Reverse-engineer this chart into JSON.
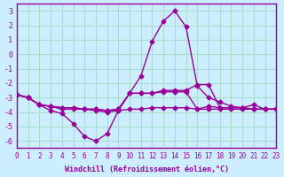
{
  "title": "",
  "xlabel": "Windchill (Refroidissement éolien,°C)",
  "ylabel": "",
  "bg_color": "#cceeff",
  "line_color": "#990099",
  "grid_color": "#aaddcc",
  "xlim": [
    0,
    23
  ],
  "ylim": [
    -6.5,
    3.5
  ],
  "yticks": [
    3,
    2,
    1,
    0,
    -1,
    -2,
    -3,
    -4,
    -5,
    -6
  ],
  "xticks": [
    0,
    1,
    2,
    3,
    4,
    5,
    6,
    7,
    8,
    9,
    10,
    11,
    12,
    13,
    14,
    15,
    16,
    17,
    18,
    19,
    20,
    21,
    22,
    23
  ],
  "lines": [
    {
      "x": [
        0,
        1,
        2,
        3,
        4,
        5,
        6,
        7,
        8,
        9,
        10,
        11,
        12,
        13,
        14,
        15,
        16,
        17,
        18,
        19,
        20,
        21,
        22,
        23
      ],
      "y": [
        -2.8,
        -3.0,
        -3.5,
        -3.9,
        -4.1,
        -4.8,
        -5.7,
        -6.0,
        -5.5,
        -3.9,
        -2.7,
        -1.5,
        0.9,
        2.3,
        3.0,
        1.9,
        -2.2,
        -3.0,
        -3.3,
        -3.6,
        -3.7,
        -3.5,
        -3.8,
        -3.8
      ]
    },
    {
      "x": [
        0,
        1,
        2,
        3,
        4,
        5,
        6,
        7,
        8,
        9,
        10,
        11,
        12,
        13,
        14,
        15,
        16,
        17,
        18,
        19,
        20,
        21,
        22,
        23
      ],
      "y": [
        -2.8,
        -3.0,
        -3.5,
        -3.6,
        -3.7,
        -3.7,
        -3.8,
        -3.8,
        -3.9,
        -3.8,
        -2.7,
        -2.7,
        -2.7,
        -2.6,
        -2.6,
        -2.6,
        -3.8,
        -3.6,
        -3.7,
        -3.7,
        -3.7,
        -3.8,
        -3.8,
        -3.8
      ]
    },
    {
      "x": [
        0,
        1,
        2,
        3,
        4,
        5,
        6,
        7,
        8,
        9,
        10,
        11,
        12,
        13,
        14,
        15,
        16,
        17,
        18,
        19,
        20,
        21,
        22,
        23
      ],
      "y": [
        -2.8,
        -3.0,
        -3.5,
        -3.6,
        -3.7,
        -3.7,
        -3.8,
        -3.8,
        -3.9,
        -3.8,
        -2.7,
        -2.7,
        -2.7,
        -2.5,
        -2.5,
        -2.5,
        -2.1,
        -2.1,
        -3.7,
        -3.7,
        -3.7,
        -3.8,
        -3.8,
        -3.8
      ]
    },
    {
      "x": [
        0,
        1,
        2,
        3,
        4,
        5,
        6,
        7,
        8,
        9,
        10,
        11,
        12,
        13,
        14,
        15,
        16,
        17,
        18,
        19,
        20,
        21,
        22,
        23
      ],
      "y": [
        -2.8,
        -3.0,
        -3.5,
        -3.6,
        -3.8,
        -3.8,
        -3.8,
        -3.9,
        -4.0,
        -3.9,
        -3.8,
        -3.8,
        -3.7,
        -3.7,
        -3.7,
        -3.7,
        -3.8,
        -3.8,
        -3.8,
        -3.8,
        -3.8,
        -3.8,
        -3.8,
        -3.8
      ]
    }
  ]
}
